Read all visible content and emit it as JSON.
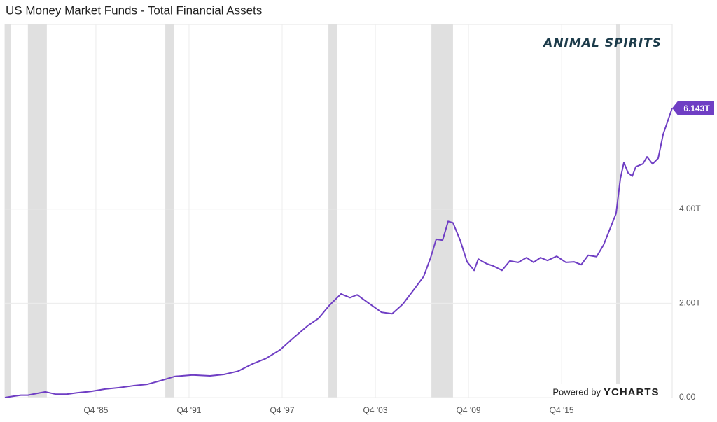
{
  "chart_data": {
    "type": "line",
    "title": "US Money Market Funds - Total Financial Assets",
    "watermark": "ANIMAL SPIRITS",
    "credit_prefix": "Powered by",
    "credit_brand": "YCHARTS",
    "last_value_label": "6.143T",
    "color": "#6f3ec4",
    "recession_color": "#e0e0e0",
    "grid": true,
    "xlim": [
      1979.89,
      2022.87
    ],
    "ylim": [
      0,
      7.92
    ],
    "xticks": [
      {
        "value": 1985.75,
        "label": "Q4 '85"
      },
      {
        "value": 1991.75,
        "label": "Q4 '91"
      },
      {
        "value": 1997.75,
        "label": "Q4 '97"
      },
      {
        "value": 2003.75,
        "label": "Q4 '03"
      },
      {
        "value": 2009.75,
        "label": "Q4 '09"
      },
      {
        "value": 2015.75,
        "label": "Q4 '15"
      }
    ],
    "yticks": [
      {
        "value": 0,
        "label": "0.00"
      },
      {
        "value": 2,
        "label": "2.00T"
      },
      {
        "value": 4,
        "label": "4.00T"
      }
    ],
    "recessions": [
      [
        1979.89,
        1980.29
      ],
      [
        1981.37,
        1982.59
      ],
      [
        1990.22,
        1990.8
      ],
      [
        2000.73,
        2001.31
      ],
      [
        2007.36,
        2008.75
      ],
      [
        2019.26,
        2019.49
      ]
    ],
    "x": [
      1979.89,
      1980.47,
      1980.92,
      1981.37,
      1981.83,
      1982.5,
      1983.18,
      1983.86,
      1984.53,
      1985.43,
      1986.34,
      1987.24,
      1988.14,
      1989.04,
      1989.94,
      1990.85,
      1991.3,
      1991.97,
      1993.1,
      1994.0,
      1994.91,
      1995.81,
      1996.71,
      1997.61,
      1998.52,
      1999.42,
      2000.09,
      2000.77,
      2001.54,
      2002.12,
      2002.58,
      2003.25,
      2004.15,
      2004.83,
      2005.51,
      2006.18,
      2006.86,
      2007.31,
      2007.67,
      2008.08,
      2008.44,
      2008.75,
      2009.21,
      2009.66,
      2010.11,
      2010.38,
      2010.92,
      2011.37,
      2011.91,
      2012.41,
      2012.95,
      2013.49,
      2013.94,
      2014.39,
      2014.84,
      2015.43,
      2016.02,
      2016.56,
      2017.01,
      2017.46,
      2018.0,
      2018.45,
      2018.9,
      2019.26,
      2019.53,
      2019.76,
      2020.03,
      2020.3,
      2020.53,
      2020.98,
      2021.25,
      2021.61,
      2021.97,
      2022.29,
      2022.87
    ],
    "values": [
      0.0,
      0.03,
      0.05,
      0.05,
      0.08,
      0.12,
      0.07,
      0.07,
      0.1,
      0.13,
      0.18,
      0.21,
      0.25,
      0.28,
      0.36,
      0.45,
      0.46,
      0.48,
      0.46,
      0.49,
      0.56,
      0.71,
      0.83,
      1.01,
      1.28,
      1.53,
      1.68,
      1.95,
      2.2,
      2.12,
      2.18,
      2.02,
      1.81,
      1.78,
      1.98,
      2.27,
      2.57,
      2.97,
      3.36,
      3.34,
      3.74,
      3.71,
      3.34,
      2.88,
      2.7,
      2.94,
      2.84,
      2.79,
      2.7,
      2.9,
      2.87,
      2.97,
      2.87,
      2.97,
      2.91,
      3.0,
      2.87,
      2.88,
      2.82,
      3.02,
      2.99,
      3.24,
      3.61,
      3.91,
      4.64,
      4.99,
      4.77,
      4.7,
      4.9,
      4.96,
      5.11,
      4.96,
      5.08,
      5.59,
      6.143
    ]
  }
}
